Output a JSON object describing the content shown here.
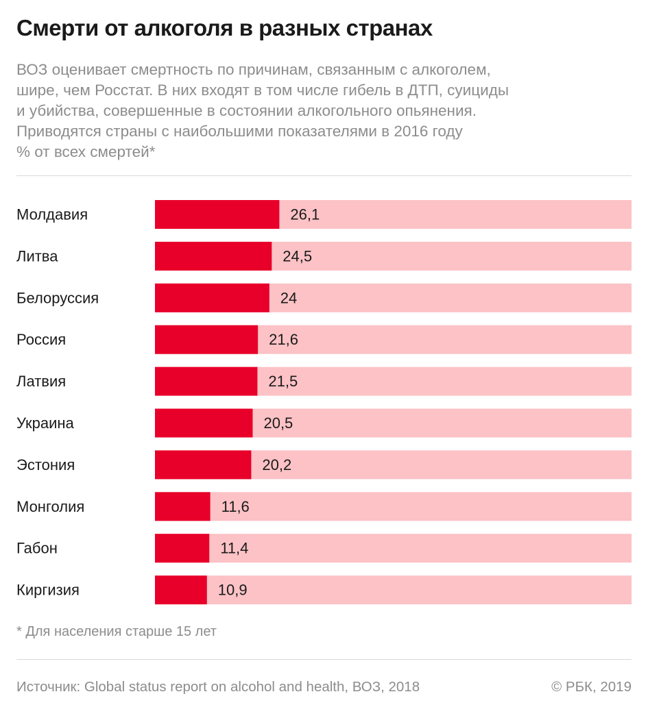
{
  "title": "Смерти от алкоголя в разных странах",
  "subtitle_lines": [
    "ВОЗ оценивает смертность по причинам, связанным с алкоголем,",
    "шире, чем Росстат. В них входят в том числе гибель в ДТП, суициды",
    "и убийства, совершенные в состоянии алкогольного опьянения.",
    "Приводятся страны с наибольшими показателями в 2016 году",
    "% от всех смертей*"
  ],
  "footnote": "* Для населения старше 15 лет",
  "source": "Источник: Global status report on alcohol and health, ВОЗ, 2018",
  "copyright": "© РБК, 2019",
  "colors": {
    "bar": "#e8002a",
    "track": "#fcc2c6",
    "label": "#1a1a1a",
    "muted": "#8c8c8c"
  },
  "chart_data": {
    "type": "bar",
    "orientation": "horizontal",
    "categories": [
      "Молдавия",
      "Литва",
      "Белоруссия",
      "Россия",
      "Латвия",
      "Украина",
      "Эстония",
      "Монголия",
      "Габон",
      "Киргизия"
    ],
    "values": [
      26.1,
      24.5,
      24,
      21.6,
      21.5,
      20.5,
      20.2,
      11.6,
      11.4,
      10.9
    ],
    "value_labels": [
      "26,1",
      "24,5",
      "24",
      "21,6",
      "21,5",
      "20,5",
      "20,2",
      "11,6",
      "11,4",
      "10,9"
    ],
    "xlim": [
      0,
      100
    ],
    "grid": false,
    "legend": "none"
  }
}
